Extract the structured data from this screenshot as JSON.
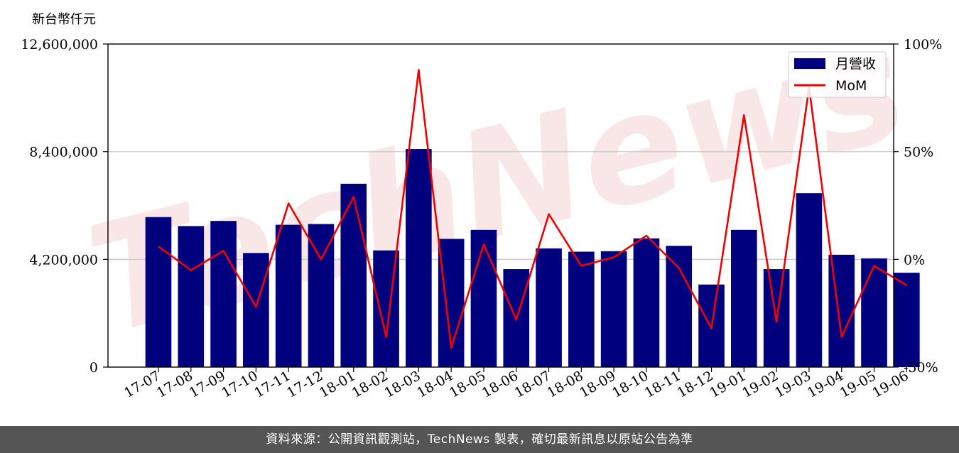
{
  "chart_data": {
    "type": "bar",
    "unit_label": "新台幣仟元",
    "categories": [
      "17-07",
      "17-08",
      "17-09",
      "17-10",
      "17-11",
      "17-12",
      "18-01",
      "18-02",
      "18-03",
      "18-04",
      "18-05",
      "18-06",
      "18-07",
      "18-08",
      "18-09",
      "18-10",
      "18-11",
      "18-12",
      "19-01",
      "19-02",
      "19-03",
      "19-04",
      "19-05",
      "19-06"
    ],
    "series": [
      {
        "name": "月營收",
        "type": "bar",
        "axis": "left",
        "color": "#00007f",
        "values": [
          5850000,
          5500000,
          5700000,
          4450000,
          5550000,
          5580000,
          7150000,
          4550000,
          8500000,
          5000000,
          5350000,
          3820000,
          4630000,
          4500000,
          4520000,
          5020000,
          4730000,
          3220000,
          5350000,
          3820000,
          6780000,
          4380000,
          4240000,
          3680000
        ]
      },
      {
        "name": "MoM",
        "type": "line",
        "axis": "right",
        "color": "#ee0000",
        "values": [
          6,
          -5,
          4,
          -22,
          26,
          0,
          29,
          -36,
          88,
          -41,
          7,
          -28,
          21,
          -3,
          1,
          11,
          -4,
          -32,
          67,
          -29,
          80,
          -36,
          -3,
          -12
        ]
      }
    ],
    "y_left": {
      "ticks": [
        "0",
        "4,200,000",
        "8,400,000",
        "12,600,000"
      ],
      "min": 0,
      "max": 12600000
    },
    "y_right": {
      "ticks": [
        "-50%",
        "0%",
        "50%",
        "100%"
      ],
      "min": -50,
      "max": 100
    },
    "grid": "horizontal",
    "legend_position": "top-right"
  },
  "watermark": "TechNews",
  "footer": "資料來源：公開資訊觀測站，TechNews 製表，確切最新訊息以原站公告為準"
}
